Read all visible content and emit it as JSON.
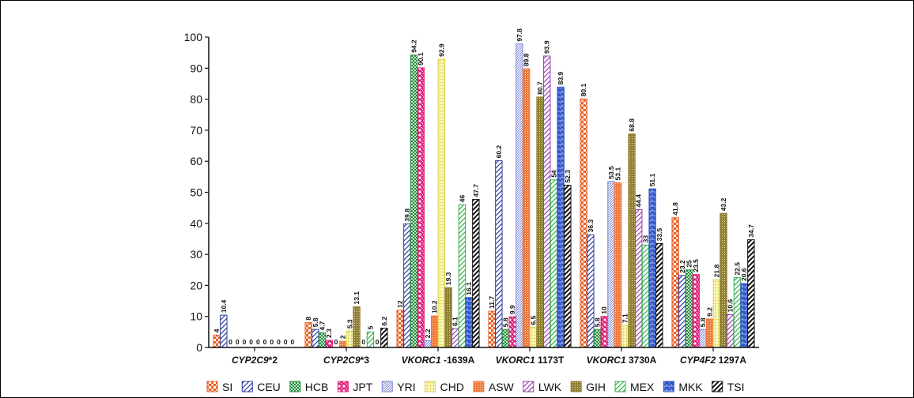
{
  "chart_data": {
    "type": "bar",
    "title": "",
    "xlabel": "",
    "ylabel": "",
    "ylim": [
      0,
      100
    ],
    "yticks": [
      0,
      10,
      20,
      30,
      40,
      50,
      60,
      70,
      80,
      90,
      100
    ],
    "grid": false,
    "legend_position": "bottom",
    "categories": [
      {
        "gene": "CYP2C9",
        "variant": "*2"
      },
      {
        "gene": "CYP2C9",
        "variant": "*3"
      },
      {
        "gene": "VKORC1",
        "variant": " -1639A"
      },
      {
        "gene": "VKORC1",
        "variant": " 1173T"
      },
      {
        "gene": "VKORC1",
        "variant": " 3730A"
      },
      {
        "gene": "CYP4F2",
        "variant": " 1297A"
      }
    ],
    "legend_order": [
      "SI",
      "CEU",
      "HCB",
      "JPT",
      "YRI",
      "CHD",
      "ASW",
      "LWK",
      "GIH",
      "MEX",
      "MKK",
      "TSI"
    ],
    "series": [
      {
        "name": "SI",
        "color": "#e8632a",
        "pattern": "checker",
        "values": [
          4,
          8,
          12,
          11.7,
          80.1,
          41.8
        ]
      },
      {
        "name": "CEU",
        "color": "#2e3d9a",
        "pattern": "diag-wide",
        "values": [
          10.4,
          5.8,
          39.8,
          60.2,
          36.3,
          23.2
        ]
      },
      {
        "name": "HCB",
        "color": "#2b8a3e",
        "pattern": "fine-check",
        "values": [
          0,
          4.7,
          94.2,
          5.8,
          5.8,
          25
        ]
      },
      {
        "name": "JPT",
        "color": "#e0207a",
        "pattern": "cross",
        "values": [
          0,
          2.3,
          90.1,
          9.9,
          10,
          23.5
        ]
      },
      {
        "name": "YRI",
        "color": "#7f86d4",
        "pattern": "diag-fine",
        "values": [
          0,
          0,
          2.2,
          97.8,
          53.5,
          5.8
        ]
      },
      {
        "name": "ASW",
        "color": "#ef7b3e",
        "pattern": "dots",
        "values": [
          0,
          2,
          10.2,
          89.8,
          53.1,
          9.2
        ]
      },
      {
        "name": "CHD",
        "color": "#d9d23a",
        "pattern": "grid",
        "values": [
          0,
          5.3,
          92.9,
          6.5,
          7.1,
          21.8
        ]
      },
      {
        "name": "GIH",
        "color": "#8f8035",
        "pattern": "dense",
        "values": [
          0,
          13.1,
          19.3,
          80.7,
          68.8,
          43.2
        ]
      },
      {
        "name": "LWK",
        "color": "#9b3fb0",
        "pattern": "diag-wide",
        "values": [
          0,
          0,
          6.1,
          93.9,
          44.4,
          10.6
        ]
      },
      {
        "name": "MEX",
        "color": "#33b04a",
        "pattern": "diag-wide",
        "values": [
          0,
          5,
          46,
          54,
          33,
          22.5
        ]
      },
      {
        "name": "MKK",
        "color": "#2f55c8",
        "pattern": "brick",
        "values": [
          0,
          0,
          16.1,
          83.9,
          51.1,
          20.6
        ]
      },
      {
        "name": "TSI",
        "color": "#111111",
        "pattern": "diag-bold",
        "values": [
          0,
          6.2,
          47.7,
          52.3,
          33.5,
          34.7
        ]
      }
    ],
    "value_labels": [
      [
        "4",
        "10.4",
        "0",
        "0",
        "0",
        "0",
        "0",
        "0",
        "0",
        "0",
        "0",
        "0"
      ],
      [
        "8",
        "5.8",
        "4.7",
        "2.3",
        "0",
        "2",
        "5.3",
        "13.1",
        "0",
        "5",
        "0",
        "6.2"
      ],
      [
        "12",
        "39.8",
        "94.2",
        "90.1",
        "2.2",
        "10.2",
        "92.9",
        "19.3",
        "6.1",
        "46",
        "16.1",
        "47.7"
      ],
      [
        "11.7",
        "60.2",
        "5.8",
        "9.9",
        "97.8",
        "89.8",
        "6.5",
        "80.7",
        "93.9",
        "54",
        "83.9",
        "52.3"
      ],
      [
        "80.1",
        "36.3",
        "5.8",
        "10",
        "53.5",
        "53.1",
        "7.1",
        "68.8",
        "44.4",
        "33",
        "51.1",
        "33.5"
      ],
      [
        "41.8",
        "23.2",
        "25",
        "23.5",
        "5.8",
        "9.2",
        "21.8",
        "43.2",
        "10.6",
        "22.5",
        "20.6",
        "34.7"
      ]
    ]
  }
}
